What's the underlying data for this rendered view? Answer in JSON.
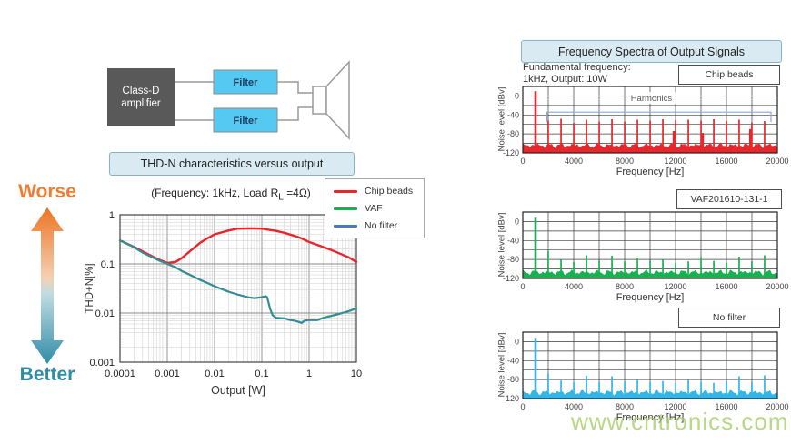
{
  "colors": {
    "red": "#e8272c",
    "green": "#17b24f",
    "thdn_blue": "#4679bd",
    "cyan": "#31b6e9",
    "filter_fill": "#55c9f1",
    "amp_fill": "#595959",
    "title_box_bg": "#d9eaf3",
    "title_box_border": "#88b4c8",
    "worse_orange": "#ef7d31",
    "better_teal": "#2f8ca8",
    "bracket_blue": "#8aa9d6",
    "watermark_green": "#9fcb5e"
  },
  "diagram": {
    "amp_line1": "Class-D",
    "amp_line2": "amplifier",
    "filter_top": "Filter",
    "filter_bottom": "Filter"
  },
  "left_section": {
    "title": "THD-N characteristics versus output",
    "subtitle_pre": "(Frequency: 1kHz, Load R",
    "subtitle_sub": "L",
    "subtitle_post": " =4Ω)",
    "worse": "Worse",
    "better": "Better",
    "legend": [
      {
        "label": "Chip beads",
        "color": "#e8272c"
      },
      {
        "label": "VAF",
        "color": "#17b24f"
      },
      {
        "label": "No filter",
        "color": "#4679bd"
      }
    ]
  },
  "right_section": {
    "title": "Frequency Spectra of Output Signals",
    "condition_line1": "Fundamental frequency:",
    "condition_line2": "1kHz, Output: 10W"
  },
  "watermark": "www.cntronics.com",
  "chart_data": [
    {
      "type": "line",
      "title": "THD-N characteristics versus output",
      "xlabel": "Output [W]",
      "ylabel": "THD+N[%]",
      "xscale": "log",
      "yscale": "log",
      "xlim": [
        0.0001,
        10
      ],
      "ylim": [
        0.001,
        1
      ],
      "xticks": [
        "0.0001",
        "0.001",
        "0.01",
        "0.1",
        "1",
        "10"
      ],
      "yticks": [
        "1",
        "0.1",
        "0.01",
        "0.001"
      ],
      "grid": true,
      "legend_position": "top-right",
      "series": [
        {
          "name": "Chip beads",
          "color": "#e8272c",
          "x": [
            0.0001,
            0.00015,
            0.0002,
            0.0003,
            0.0005,
            0.0007,
            0.001,
            0.0015,
            0.002,
            0.003,
            0.005,
            0.007,
            0.01,
            0.02,
            0.03,
            0.05,
            0.07,
            0.1,
            0.2,
            0.3,
            0.5,
            0.7,
            1,
            2,
            3,
            5,
            7,
            10
          ],
          "y": [
            0.3,
            0.25,
            0.22,
            0.18,
            0.14,
            0.12,
            0.105,
            0.11,
            0.13,
            0.18,
            0.27,
            0.33,
            0.4,
            0.48,
            0.52,
            0.53,
            0.53,
            0.52,
            0.47,
            0.43,
            0.37,
            0.33,
            0.28,
            0.22,
            0.19,
            0.155,
            0.135,
            0.11
          ]
        },
        {
          "name": "VAF",
          "color": "#17b24f",
          "x": [
            0.0001,
            0.00015,
            0.0002,
            0.0003,
            0.0005,
            0.0007,
            0.001,
            0.0015,
            0.002,
            0.003,
            0.005,
            0.007,
            0.01,
            0.02,
            0.03,
            0.05,
            0.07,
            0.1,
            0.12,
            0.13,
            0.15,
            0.17,
            0.2,
            0.3,
            0.4,
            0.5,
            0.6,
            0.7,
            0.8,
            1,
            1.5,
            2,
            3,
            5,
            7,
            10
          ],
          "y": [
            0.3,
            0.25,
            0.215,
            0.17,
            0.135,
            0.115,
            0.1,
            0.085,
            0.072,
            0.06,
            0.047,
            0.041,
            0.035,
            0.027,
            0.024,
            0.021,
            0.02,
            0.021,
            0.022,
            0.021,
            0.012,
            0.009,
            0.008,
            0.0078,
            0.0072,
            0.007,
            0.0066,
            0.0063,
            0.007,
            0.0072,
            0.0072,
            0.008,
            0.0088,
            0.01,
            0.011,
            0.0125
          ]
        },
        {
          "name": "No filter",
          "color": "#4679bd",
          "x": [
            0.0001,
            0.00015,
            0.0002,
            0.0003,
            0.0005,
            0.0007,
            0.001,
            0.0015,
            0.002,
            0.003,
            0.005,
            0.007,
            0.01,
            0.02,
            0.03,
            0.05,
            0.07,
            0.1,
            0.12,
            0.13,
            0.15,
            0.17,
            0.2,
            0.3,
            0.4,
            0.5,
            0.6,
            0.7,
            0.8,
            1,
            1.5,
            2,
            3,
            5,
            7,
            10
          ],
          "y": [
            0.305,
            0.252,
            0.218,
            0.172,
            0.137,
            0.117,
            0.101,
            0.086,
            0.073,
            0.061,
            0.048,
            0.0415,
            0.0355,
            0.0272,
            0.0242,
            0.0212,
            0.0202,
            0.0212,
            0.0223,
            0.0212,
            0.0118,
            0.0089,
            0.0079,
            0.0077,
            0.0071,
            0.0069,
            0.0065,
            0.0062,
            0.0069,
            0.0071,
            0.0071,
            0.0079,
            0.0087,
            0.0099,
            0.0109,
            0.0124
          ]
        }
      ]
    },
    {
      "type": "spectrum",
      "label": "Chip beads",
      "color": "#e8272c",
      "xlabel": "Frequency [Hz]",
      "ylabel": "Noise level [dBv]",
      "xlim": [
        0,
        20000
      ],
      "ylim": [
        -120,
        20
      ],
      "xticks": [
        "0",
        "4000",
        "8000",
        "12000",
        "16000",
        "20000"
      ],
      "yticks": [
        0,
        -40,
        -80,
        -120
      ],
      "fundamental": {
        "freq": 1000,
        "level": 10
      },
      "harmonics": {
        "freqs": [
          2000,
          3000,
          4000,
          5000,
          6000,
          7000,
          8000,
          9000,
          10000,
          11000,
          12000,
          13000,
          14000,
          15000,
          16000,
          17000,
          18000,
          19000
        ],
        "levels": [
          -52,
          -48,
          -57,
          -50,
          -54,
          -49,
          -54,
          -50,
          -52,
          -49,
          -51,
          -50,
          -52,
          -49,
          -53,
          -50,
          -56,
          -53
        ]
      },
      "minor_peaks": {
        "freqs": [
          11900,
          14100,
          17900
        ],
        "levels": [
          -74,
          -78,
          -70
        ]
      },
      "noise_floor": -104,
      "annotation": "Harmonics"
    },
    {
      "type": "spectrum",
      "label": "VAF201610-131-1",
      "color": "#17b24f",
      "xlabel": "Frequency [Hz]",
      "ylabel": "Noise level [dBv]",
      "xlim": [
        0,
        20000
      ],
      "ylim": [
        -120,
        20
      ],
      "xticks": [
        "0",
        "4000",
        "8000",
        "12000",
        "16000",
        "20000"
      ],
      "yticks": [
        0,
        -40,
        -80,
        -120
      ],
      "fundamental": {
        "freq": 1000,
        "level": 8
      },
      "harmonics": {
        "freqs": [
          2000,
          3000,
          4000,
          5000,
          6000,
          7000,
          8000,
          9000,
          10000,
          11000,
          12000,
          13000,
          14000,
          15000,
          16000,
          17000,
          18000,
          19000
        ],
        "levels": [
          -62,
          -80,
          -85,
          -71,
          -82,
          -72,
          -84,
          -77,
          -82,
          -80,
          -87,
          -84,
          -75,
          -83,
          -87,
          -74,
          -84,
          -71
        ]
      },
      "noise_floor": -107
    },
    {
      "type": "spectrum",
      "label": "No filter",
      "color": "#31b6e9",
      "xlabel": "Frequency [Hz]",
      "ylabel": "Noise level [dBv]",
      "xlim": [
        0,
        20000
      ],
      "ylim": [
        -120,
        20
      ],
      "xticks": [
        "0",
        "4000",
        "8000",
        "12000",
        "16000",
        "20000"
      ],
      "yticks": [
        0,
        -40,
        -80,
        -120
      ],
      "fundamental": {
        "freq": 1000,
        "level": 8
      },
      "harmonics": {
        "freqs": [
          2000,
          3000,
          4000,
          5000,
          6000,
          7000,
          8000,
          9000,
          10000,
          11000,
          12000,
          13000,
          14000,
          15000,
          16000,
          17000,
          18000,
          19000
        ],
        "levels": [
          -68,
          -82,
          -86,
          -72,
          -85,
          -73,
          -84,
          -79,
          -85,
          -83,
          -87,
          -81,
          -85,
          -87,
          -83,
          -73,
          -84,
          -71
        ]
      },
      "noise_floor": -107
    }
  ]
}
